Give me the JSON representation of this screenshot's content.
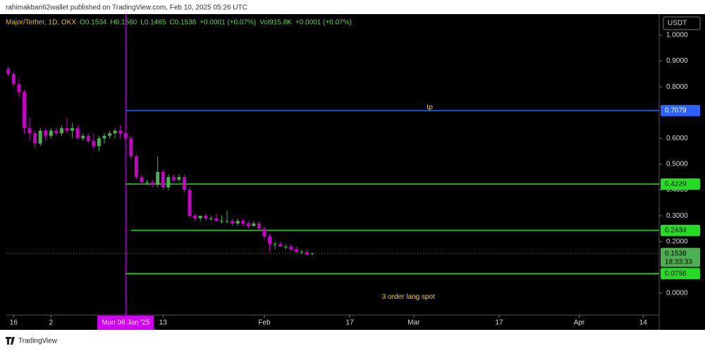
{
  "page": {
    "published": "rahimakbari62wallet published on TradingView.com, Feb 10, 2025 05:26 UTC",
    "brand": "TradingView",
    "currency": "USDT"
  },
  "chart_data": {
    "type": "candlestick",
    "legend_items": [
      "Major/Tether, 1D, OKX",
      "O0.1534",
      "H0.1560",
      "L0.1465",
      "C0.1538",
      "+0.0001 (+0.07%)",
      "Vol915.8K",
      "+0.0001 (+0.07%)"
    ],
    "x": [
      -22,
      -21,
      -20,
      -19,
      -18,
      -17,
      -16,
      -15,
      -14,
      -13,
      -12,
      -11,
      -10,
      -9,
      -8,
      -7,
      -6,
      -5,
      -4,
      -3,
      -2,
      -1,
      0,
      1,
      2,
      3,
      4,
      5,
      6,
      7,
      8,
      9,
      10,
      11,
      12,
      13,
      14,
      15,
      16,
      17,
      18,
      19,
      20,
      21,
      22,
      23,
      24,
      25,
      26,
      27,
      28,
      29,
      30,
      31,
      32,
      33,
      34,
      35
    ],
    "open": [
      0.87,
      0.85,
      0.81,
      0.78,
      0.64,
      0.62,
      0.58,
      0.63,
      0.61,
      0.63,
      0.62,
      0.64,
      0.63,
      0.64,
      0.6,
      0.61,
      0.59,
      0.57,
      0.6,
      0.61,
      0.62,
      0.63,
      0.62,
      0.6,
      0.53,
      0.45,
      0.43,
      0.43,
      0.42,
      0.47,
      0.41,
      0.45,
      0.44,
      0.45,
      0.4,
      0.3,
      0.29,
      0.3,
      0.29,
      0.29,
      0.28,
      0.28,
      0.28,
      0.27,
      0.28,
      0.27,
      0.26,
      0.27,
      0.25,
      0.22,
      0.19,
      0.19,
      0.18,
      0.18,
      0.17,
      0.16,
      0.16,
      0.1534
    ],
    "high": [
      0.88,
      0.86,
      0.83,
      0.79,
      0.68,
      0.63,
      0.64,
      0.64,
      0.64,
      0.64,
      0.65,
      0.68,
      0.66,
      0.65,
      0.62,
      0.62,
      0.62,
      0.61,
      0.62,
      0.63,
      0.64,
      0.65,
      0.64,
      0.61,
      0.54,
      0.46,
      0.44,
      0.44,
      0.53,
      0.48,
      0.46,
      0.46,
      0.46,
      0.46,
      0.41,
      0.31,
      0.3,
      0.31,
      0.3,
      0.31,
      0.3,
      0.32,
      0.29,
      0.29,
      0.29,
      0.28,
      0.28,
      0.28,
      0.26,
      0.23,
      0.2,
      0.2,
      0.19,
      0.19,
      0.18,
      0.17,
      0.17,
      0.156
    ],
    "low": [
      0.84,
      0.8,
      0.76,
      0.62,
      0.59,
      0.56,
      0.57,
      0.59,
      0.6,
      0.61,
      0.61,
      0.62,
      0.6,
      0.6,
      0.59,
      0.58,
      0.56,
      0.55,
      0.58,
      0.6,
      0.6,
      0.6,
      0.59,
      0.52,
      0.44,
      0.42,
      0.42,
      0.41,
      0.41,
      0.4,
      0.4,
      0.43,
      0.43,
      0.39,
      0.29,
      0.28,
      0.28,
      0.28,
      0.28,
      0.28,
      0.27,
      0.27,
      0.26,
      0.26,
      0.26,
      0.25,
      0.26,
      0.24,
      0.21,
      0.16,
      0.17,
      0.18,
      0.17,
      0.16,
      0.16,
      0.15,
      0.15,
      0.1465
    ],
    "close": [
      0.85,
      0.81,
      0.78,
      0.64,
      0.62,
      0.58,
      0.63,
      0.61,
      0.63,
      0.62,
      0.64,
      0.63,
      0.64,
      0.6,
      0.61,
      0.59,
      0.57,
      0.6,
      0.61,
      0.62,
      0.63,
      0.62,
      0.6,
      0.53,
      0.45,
      0.43,
      0.43,
      0.42,
      0.47,
      0.41,
      0.45,
      0.44,
      0.45,
      0.4,
      0.3,
      0.29,
      0.3,
      0.29,
      0.29,
      0.28,
      0.28,
      0.28,
      0.27,
      0.28,
      0.27,
      0.26,
      0.27,
      0.25,
      0.22,
      0.19,
      0.19,
      0.18,
      0.18,
      0.17,
      0.16,
      0.16,
      0.15,
      0.1538
    ],
    "up_color": "#4caf50",
    "down_color": "#c800c8",
    "xlim": [
      -22.5,
      100
    ],
    "ylim": [
      -0.085,
      1.082
    ],
    "xticks": [
      {
        "value": -21,
        "label": "16"
      },
      {
        "value": -14,
        "label": "2"
      },
      {
        "value": 7,
        "label": "13"
      },
      {
        "value": 26,
        "label": "Feb"
      },
      {
        "value": 42,
        "label": "17"
      },
      {
        "value": 54,
        "label": "Mar"
      },
      {
        "value": 70,
        "label": "17"
      },
      {
        "value": 85,
        "label": "Apr"
      },
      {
        "value": 97,
        "label": "14"
      }
    ],
    "yticks": [
      {
        "value": 1,
        "label": "1.0000"
      },
      {
        "value": 0.9,
        "label": "0.9000"
      },
      {
        "value": 0.8,
        "label": "0.8000"
      },
      {
        "value": 0.6,
        "label": "0.6000"
      },
      {
        "value": 0.5,
        "label": "0.5000"
      },
      {
        "value": 0.4,
        "label": "0.4000"
      },
      {
        "value": 0.3,
        "label": "0.3000"
      },
      {
        "value": 0.2,
        "label": "0.2000"
      },
      {
        "value": 0,
        "label": "0.0000"
      }
    ],
    "levels": [
      {
        "value": 0.7079,
        "color": "#2962ff",
        "from": 0
      },
      {
        "value": 0.4229,
        "color": "#22dd22",
        "from": 0
      },
      {
        "value": 0.2434,
        "color": "#22dd22",
        "from": 1
      },
      {
        "value": 0.0756,
        "color": "#22dd22",
        "from": 0
      }
    ],
    "crosshair": {
      "x": 0,
      "label": "Mon 06 Jan '25",
      "color": "#d500f9"
    },
    "countdown": "18:33:33",
    "annotations": [
      {
        "text": "tp",
        "x": 57,
        "y": 0.72
      },
      {
        "text": "3 order lang spot",
        "x": 53,
        "y": -0.015
      }
    ]
  }
}
